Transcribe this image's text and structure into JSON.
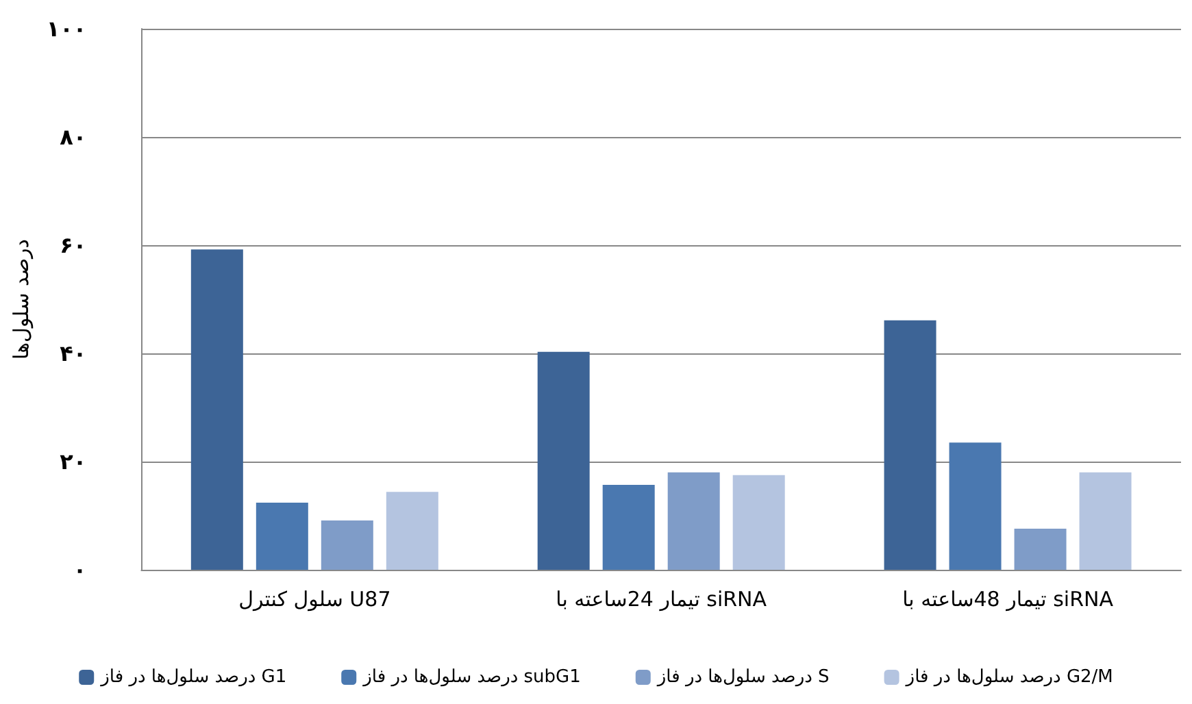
{
  "chart_data": {
    "type": "bar",
    "ylabel": "درصد سلول‌ها",
    "categories": [
      "سلول کنترل U87",
      "تیمار 24ساعته با siRNA",
      "تیمار 48ساعته با siRNA"
    ],
    "series": [
      {
        "name": "درصد سلول‌ها در فاز G1",
        "color": "#3d6496",
        "values": [
          59.2,
          40.3,
          46.1
        ]
      },
      {
        "name": "درصد سلول‌ها در فاز subG1",
        "color": "#4a78b0",
        "values": [
          12.4,
          15.7,
          23.5
        ]
      },
      {
        "name": "درصد سلول‌ها در فاز S",
        "color": "#7f9cc8",
        "values": [
          9.1,
          18.0,
          7.6
        ]
      },
      {
        "name": "درصد سلول‌ها در فاز G2/M",
        "color": "#b4c4e0",
        "values": [
          14.4,
          17.5,
          18.0
        ]
      }
    ],
    "ylim": [
      0,
      100
    ],
    "yticks": [
      {
        "value": 0,
        "label": "۰"
      },
      {
        "value": 20,
        "label": "۲۰"
      },
      {
        "value": 40,
        "label": "۴۰"
      },
      {
        "value": 60,
        "label": "۶۰"
      },
      {
        "value": 80,
        "label": "۸۰"
      },
      {
        "value": 100,
        "label": "۱۰۰"
      }
    ],
    "grid": "y",
    "legend": "bottom"
  }
}
